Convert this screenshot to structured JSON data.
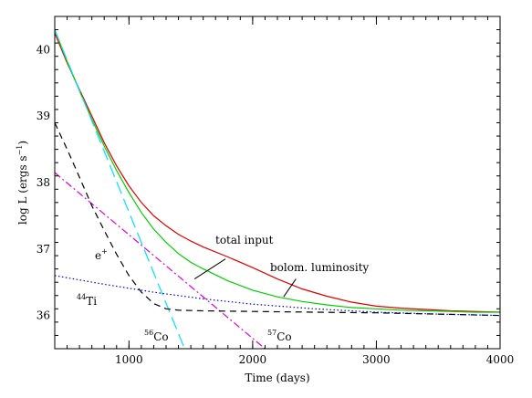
{
  "chart_data": {
    "type": "line",
    "xlabel": "Time (days)",
    "ylabel_main": "log L (ergs s",
    "ylabel_sup": "−1",
    "ylabel_close": ")",
    "xlim": [
      400,
      4000
    ],
    "ylim": [
      35.5,
      40.5
    ],
    "x_ticks": [
      1000,
      2000,
      3000,
      4000
    ],
    "x_tick_labels": [
      "1000",
      "2000",
      "3000",
      "4000"
    ],
    "y_ticks": [
      36,
      37,
      38,
      39,
      40
    ],
    "y_tick_labels": [
      "36",
      "37",
      "38",
      "39",
      "40"
    ],
    "grid": false,
    "series": [
      {
        "id": "bolom",
        "color": "#e00000",
        "dash": "solid",
        "x": [
          400,
          500,
          600,
          700,
          800,
          900,
          1000,
          1100,
          1200,
          1300,
          1400,
          1500,
          1600,
          1800,
          2000,
          2200,
          2400,
          2600,
          2800,
          3000,
          3200,
          3400,
          3600,
          3800,
          4000
        ],
        "y": [
          40.25,
          39.8,
          39.4,
          39.0,
          38.6,
          38.25,
          37.95,
          37.7,
          37.5,
          37.35,
          37.22,
          37.12,
          37.03,
          36.88,
          36.72,
          36.55,
          36.4,
          36.29,
          36.2,
          36.14,
          36.11,
          36.09,
          36.07,
          36.06,
          36.05
        ]
      },
      {
        "id": "total",
        "color": "#00d000",
        "dash": "solid",
        "x": [
          400,
          500,
          600,
          700,
          800,
          900,
          1000,
          1100,
          1200,
          1300,
          1400,
          1500,
          1600,
          1800,
          2000,
          2200,
          2400,
          2600,
          2800,
          3000,
          3200,
          3400,
          3600,
          3800,
          4000
        ],
        "y": [
          40.3,
          39.82,
          39.38,
          38.95,
          38.55,
          38.18,
          37.85,
          37.55,
          37.3,
          37.1,
          36.93,
          36.8,
          36.7,
          36.52,
          36.38,
          36.28,
          36.21,
          36.16,
          36.12,
          36.1,
          36.08,
          36.07,
          36.06,
          36.05,
          36.05
        ]
      },
      {
        "id": "co56",
        "color": "#00e0ff",
        "dash": "longdash",
        "x": [
          400,
          1450
        ],
        "y": [
          40.3,
          35.5
        ]
      },
      {
        "id": "co57",
        "color": "#e000e0",
        "dash": "dashdot",
        "x": [
          400,
          2100
        ],
        "y": [
          38.15,
          35.5
        ]
      },
      {
        "id": "positron",
        "color": "#000000",
        "dash": "dash",
        "x": [
          400,
          500,
          600,
          700,
          800,
          900,
          1000,
          1100,
          1200,
          1300,
          1400,
          1600,
          2000,
          2500,
          3000,
          3500,
          4000
        ],
        "y": [
          38.9,
          38.5,
          38.08,
          37.65,
          37.28,
          36.92,
          36.6,
          36.35,
          36.18,
          36.1,
          36.08,
          36.07,
          36.06,
          36.05,
          36.04,
          36.02,
          36.0
        ]
      },
      {
        "id": "ti44",
        "color": "#0000e0",
        "dash": "dot",
        "x": [
          400,
          800,
          1200,
          1600,
          2000,
          2500,
          3000,
          3500,
          4000
        ],
        "y": [
          36.6,
          36.47,
          36.35,
          36.25,
          36.17,
          36.1,
          36.05,
          36.02,
          36.0
        ]
      }
    ],
    "annotations": [
      {
        "id": "total-input",
        "text": "total input",
        "pointer": {
          "from": [
            1780,
            36.85
          ],
          "to": [
            1530,
            36.55
          ]
        }
      },
      {
        "id": "bolom-luminosity",
        "text": "bolom. luminosity",
        "pointer": {
          "from": [
            2350,
            36.55
          ],
          "to": [
            2250,
            36.28
          ]
        }
      },
      {
        "id": "positron",
        "prefix": "e",
        "sup": "+"
      },
      {
        "id": "ti44",
        "sup": "44",
        "text": "Ti"
      },
      {
        "id": "co56",
        "sup": "56",
        "text": "Co"
      },
      {
        "id": "co57",
        "sup": "57",
        "text": "Co"
      }
    ]
  }
}
